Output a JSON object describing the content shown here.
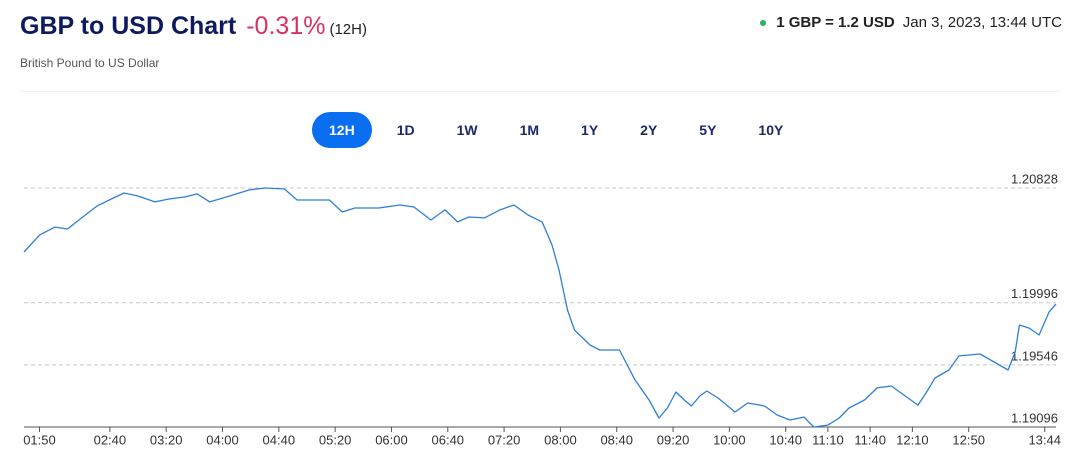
{
  "header": {
    "title": "GBP to USD Chart",
    "change": "-0.31%",
    "period": "(12H)",
    "subtitle": "British Pound to US Dollar",
    "rate": "1 GBP = 1.2 USD",
    "timestamp": "Jan 3, 2023, 13:44 UTC"
  },
  "ranges": [
    "12H",
    "1D",
    "1W",
    "1M",
    "1Y",
    "2Y",
    "5Y",
    "10Y"
  ],
  "active_range": "12H",
  "chart_data": {
    "type": "line",
    "color": "#2f7fd9",
    "grid": true,
    "x": [
      99,
      110,
      121,
      130,
      138,
      151,
      161,
      170,
      180,
      192,
      202,
      213,
      222,
      231,
      245,
      259,
      270,
      284,
      293,
      316,
      325,
      334,
      351,
      366,
      376,
      388,
      398,
      407,
      415,
      426,
      437,
      447,
      457,
      467,
      474,
      479,
      485,
      490,
      501,
      508,
      522,
      533,
      543,
      550,
      556,
      562,
      568,
      573,
      579,
      584,
      592,
      604,
      613,
      625,
      634,
      643,
      653,
      660,
      670,
      678,
      685,
      696,
      705,
      715,
      724,
      734,
      741,
      746,
      756,
      763,
      778,
      788,
      798,
      803,
      806,
      813,
      820,
      827,
      832
    ],
    "values": [
      1.20364,
      1.20487,
      1.20545,
      1.20531,
      1.20596,
      1.20698,
      1.20748,
      1.20792,
      1.2077,
      1.20727,
      1.20748,
      1.20763,
      1.20785,
      1.20727,
      1.2077,
      1.20814,
      1.20828,
      1.20821,
      1.20741,
      1.20741,
      1.20654,
      1.20683,
      1.20683,
      1.20705,
      1.2069,
      1.20596,
      1.20669,
      1.20582,
      1.20618,
      1.20611,
      1.20669,
      1.20705,
      1.20632,
      1.20582,
      1.20415,
      1.20234,
      1.19944,
      1.19799,
      1.1969,
      1.19654,
      1.19654,
      1.19437,
      1.19292,
      1.19161,
      1.19234,
      1.1935,
      1.19292,
      1.19248,
      1.19321,
      1.19357,
      1.19306,
      1.19205,
      1.1927,
      1.19248,
      1.19183,
      1.19147,
      1.19168,
      1.19096,
      1.1911,
      1.19161,
      1.19234,
      1.19292,
      1.19379,
      1.19393,
      1.19328,
      1.19255,
      1.19364,
      1.19451,
      1.19509,
      1.19611,
      1.19625,
      1.19567,
      1.19509,
      1.1964,
      1.19835,
      1.19813,
      1.19763,
      1.19929,
      1.19987
    ],
    "xlim": [
      99,
      832
    ],
    "xticks": [
      {
        "value": 110,
        "label": "01:50"
      },
      {
        "value": 160,
        "label": "02:40"
      },
      {
        "value": 200,
        "label": "03:20"
      },
      {
        "value": 240,
        "label": "04:00"
      },
      {
        "value": 280,
        "label": "04:40"
      },
      {
        "value": 320,
        "label": "05:20"
      },
      {
        "value": 360,
        "label": "06:00"
      },
      {
        "value": 400,
        "label": "06:40"
      },
      {
        "value": 440,
        "label": "07:20"
      },
      {
        "value": 480,
        "label": "08:00"
      },
      {
        "value": 520,
        "label": "08:40"
      },
      {
        "value": 560,
        "label": "09:20"
      },
      {
        "value": 600,
        "label": "10:00"
      },
      {
        "value": 640,
        "label": "10:40"
      },
      {
        "value": 670,
        "label": "11:10"
      },
      {
        "value": 700,
        "label": "11:40"
      },
      {
        "value": 730,
        "label": "12:10"
      },
      {
        "value": 770,
        "label": "12:50"
      },
      {
        "value": 824,
        "label": "13:44"
      }
    ],
    "ylim": [
      1.19096,
      1.20828
    ],
    "yticks": [
      1.19096,
      1.19546,
      1.19996,
      1.20828
    ]
  }
}
